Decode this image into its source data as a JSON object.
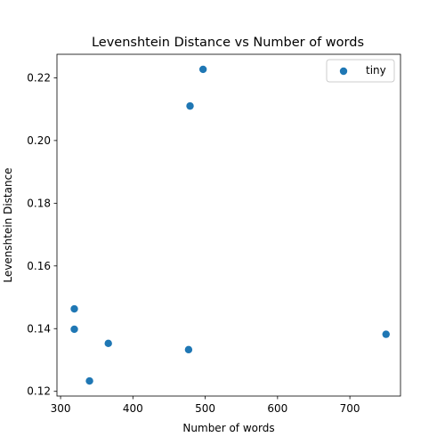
{
  "chart_data": {
    "type": "scatter",
    "title": "Levenshtein Distance vs Number of words",
    "xlabel": "Number of words",
    "ylabel": "Levenshtein Distance",
    "xlim": [
      295,
      770
    ],
    "ylim": [
      0.1185,
      0.2275
    ],
    "xticks": [
      300,
      400,
      500,
      600,
      700
    ],
    "xtick_labels": [
      "300",
      "400",
      "500",
      "600",
      "700"
    ],
    "yticks": [
      0.12,
      0.14,
      0.16,
      0.18,
      0.2,
      0.22
    ],
    "ytick_labels": [
      "0.12",
      "0.14",
      "0.16",
      "0.18",
      "0.20",
      "0.22"
    ],
    "grid": false,
    "legend_position": "top-right",
    "series": [
      {
        "name": "tiny",
        "color": "#1f77b4",
        "x": [
          319,
          319,
          340,
          366,
          477,
          479,
          497,
          750
        ],
        "y": [
          0.1463,
          0.1398,
          0.1233,
          0.1353,
          0.1333,
          0.211,
          0.2227,
          0.1382
        ]
      }
    ]
  }
}
